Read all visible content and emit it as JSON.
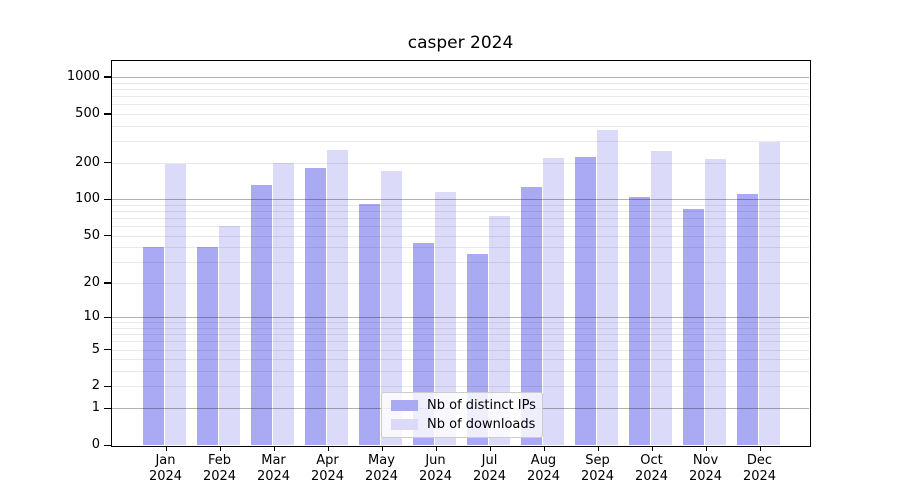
{
  "title": "casper 2024",
  "chart_data": {
    "type": "bar",
    "title": "casper 2024",
    "categories": [
      "Jan",
      "Feb",
      "Mar",
      "Apr",
      "May",
      "Jun",
      "Jul",
      "Aug",
      "Sep",
      "Oct",
      "Nov",
      "Dec"
    ],
    "year": "2024",
    "series": [
      {
        "name": "Nb of distinct IPs",
        "color": "#aaaaf4",
        "values": [
          40,
          40,
          131,
          179,
          92,
          43,
          35,
          126,
          220,
          105,
          83,
          110
        ]
      },
      {
        "name": "Nb of downloads",
        "color": "#dbdbf9",
        "values": [
          195,
          60,
          197,
          255,
          172,
          114,
          72,
          217,
          368,
          250,
          213,
          297
        ]
      }
    ],
    "y_axis": {
      "scale": "log1p",
      "ticks": [
        0,
        1,
        2,
        5,
        10,
        20,
        50,
        100,
        200,
        500,
        1000
      ],
      "major_gridlines": [
        1,
        10,
        100,
        1000
      ]
    },
    "xlabel": "",
    "ylabel": "",
    "grid": true,
    "legend_position": "lower center"
  }
}
